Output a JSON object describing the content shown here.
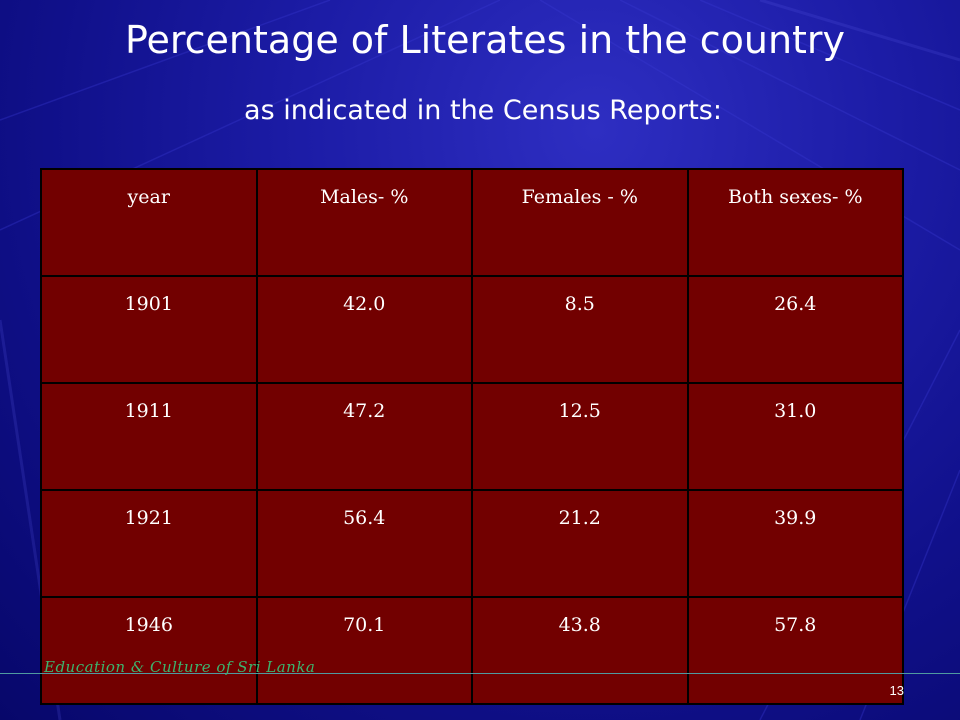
{
  "slide": {
    "title": "Percentage of Literates in the country",
    "subtitle": "as indicated in the Census Reports:",
    "footer": "Education & Culture of Sri Lanka",
    "page_number": "13"
  },
  "table": {
    "headers": [
      "year",
      "Males- %",
      "Females - %",
      "Both sexes- %"
    ],
    "rows": [
      [
        "1901",
        "42.0",
        "8.5",
        "26.4"
      ],
      [
        "1911",
        "47.2",
        "12.5",
        "31.0"
      ],
      [
        "1921",
        "56.4",
        "21.2",
        "39.9"
      ],
      [
        "1946",
        "70.1",
        "43.8",
        "57.8"
      ]
    ]
  },
  "colors": {
    "background": "#1c1ca6",
    "table_fill": "#720000",
    "footer_text": "#3cb46e"
  }
}
